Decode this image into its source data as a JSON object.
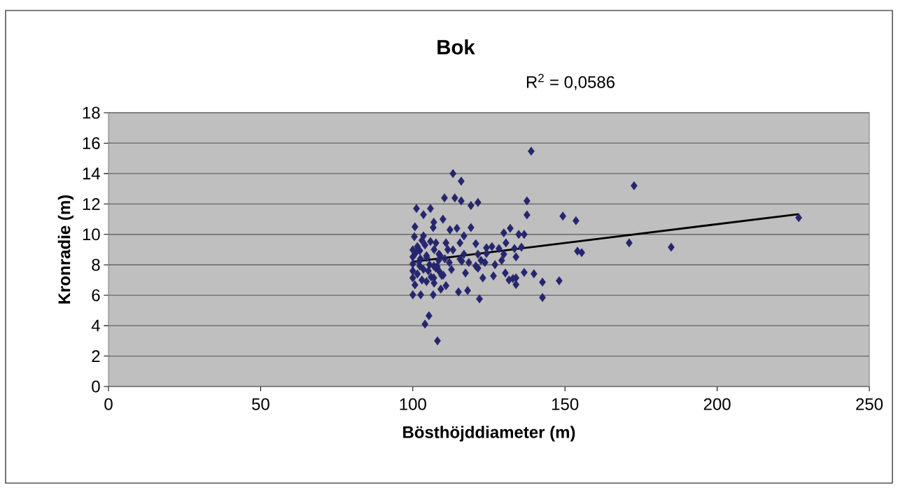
{
  "chart_data": {
    "type": "scatter",
    "title": "Bok",
    "xlabel": "Bösthöjddiameter (m)",
    "ylabel": "Kronradie (m)",
    "annotations": [
      "R$^{2}$ = 0,0586"
    ],
    "xlim": [
      0,
      250
    ],
    "xticks": [
      0,
      50,
      100,
      150,
      200,
      250
    ],
    "ylim": [
      0,
      18
    ],
    "yticks": [
      0,
      2,
      4,
      6,
      8,
      10,
      12,
      14,
      16,
      18
    ],
    "grid": "y",
    "series": [
      {
        "marker": "diamond",
        "color": "#26266e",
        "x": [
          138.9,
          113.2,
          115.9,
          172.7,
          110.4,
          113.8,
          115.9,
          119.1,
          121.4,
          137.5,
          101.2,
          105.8,
          103.5,
          137.5,
          149.3,
          153.6,
          100.7,
          109.9,
          106.9,
          106.7,
          112.2,
          114.5,
          119.1,
          132.0,
          129.9,
          134.8,
          136.6,
          116.8,
          100.5,
          103.5,
          130.6,
          110.9,
          120.7,
          115.5,
          105.8,
          107.6,
          124.2,
          126.0,
          128.3,
          133.4,
          135.7,
          100.0,
          102.3,
          113.2,
          116.8,
          121.4,
          124.2,
          129.9,
          133.9,
          100.0,
          104.6,
          108.6,
          115.5,
          129.2,
          112.0,
          118.4,
          122.4,
          123.7,
          127.0,
          100.0,
          102.3,
          106.9,
          116.1,
          120.7,
          121.4,
          112.7,
          117.3,
          100.0,
          105.1,
          108.6,
          110.0,
          123.0,
          126.5,
          130.4,
          136.6,
          139.8,
          131.6,
          133.9,
          133.9,
          142.6,
          148.1,
          100.0,
          103.0,
          106.9,
          100.7,
          110.9,
          109.2,
          115.0,
          118.0,
          100.0,
          102.6,
          106.7,
          121.9,
          142.6,
          105.3,
          104.0,
          108.1,
          171.1,
          184.9,
          226.8,
          154.1,
          155.5,
          132.9,
          101.5,
          103.0,
          104.5,
          107.0,
          108.5,
          101.0,
          102.0,
          104.0,
          105.5,
          107.5,
          109.0,
          111.5,
          101.5,
          103.5,
          106.0,
          108.0,
          110.5,
          102.5,
          104.5,
          107.0,
          109.5
        ],
        "values": [
          15.47,
          14.0,
          13.5,
          13.2,
          12.4,
          12.4,
          12.2,
          11.9,
          12.1,
          12.2,
          11.7,
          11.7,
          11.3,
          11.28,
          11.2,
          10.9,
          10.5,
          11.0,
          10.8,
          10.45,
          10.3,
          10.4,
          10.45,
          10.4,
          10.1,
          10.0,
          10.0,
          9.9,
          9.85,
          9.9,
          9.44,
          9.44,
          9.39,
          9.44,
          9.53,
          9.44,
          9.12,
          9.2,
          9.07,
          9.07,
          9.16,
          8.98,
          8.93,
          8.98,
          8.7,
          8.7,
          8.75,
          8.7,
          8.52,
          8.52,
          8.47,
          8.7,
          8.38,
          8.29,
          8.15,
          8.15,
          8.29,
          8.15,
          8.01,
          8.06,
          7.92,
          7.92,
          8.24,
          7.92,
          7.78,
          7.69,
          7.46,
          7.6,
          7.6,
          7.6,
          7.32,
          7.14,
          7.27,
          7.46,
          7.5,
          7.41,
          7.0,
          7.14,
          6.7,
          6.86,
          6.95,
          7.14,
          7.0,
          7.14,
          6.68,
          6.63,
          6.4,
          6.22,
          6.31,
          6.03,
          6.03,
          6.03,
          5.76,
          5.85,
          4.65,
          4.1,
          3.0,
          9.44,
          9.16,
          11.1,
          8.9,
          8.8,
          7.1,
          9.2,
          9.6,
          8.6,
          9.0,
          8.3,
          8.8,
          8.2,
          9.3,
          8.0,
          7.8,
          8.6,
          9.0,
          7.4,
          7.7,
          7.2,
          7.9,
          8.4,
          8.4,
          6.9,
          6.8,
          7.3
        ]
      },
      {
        "type": "line",
        "marker": "none",
        "color": "#000000",
        "x": [
          100.0,
          226.8
        ],
        "values": [
          8.2,
          11.33
        ]
      }
    ]
  }
}
